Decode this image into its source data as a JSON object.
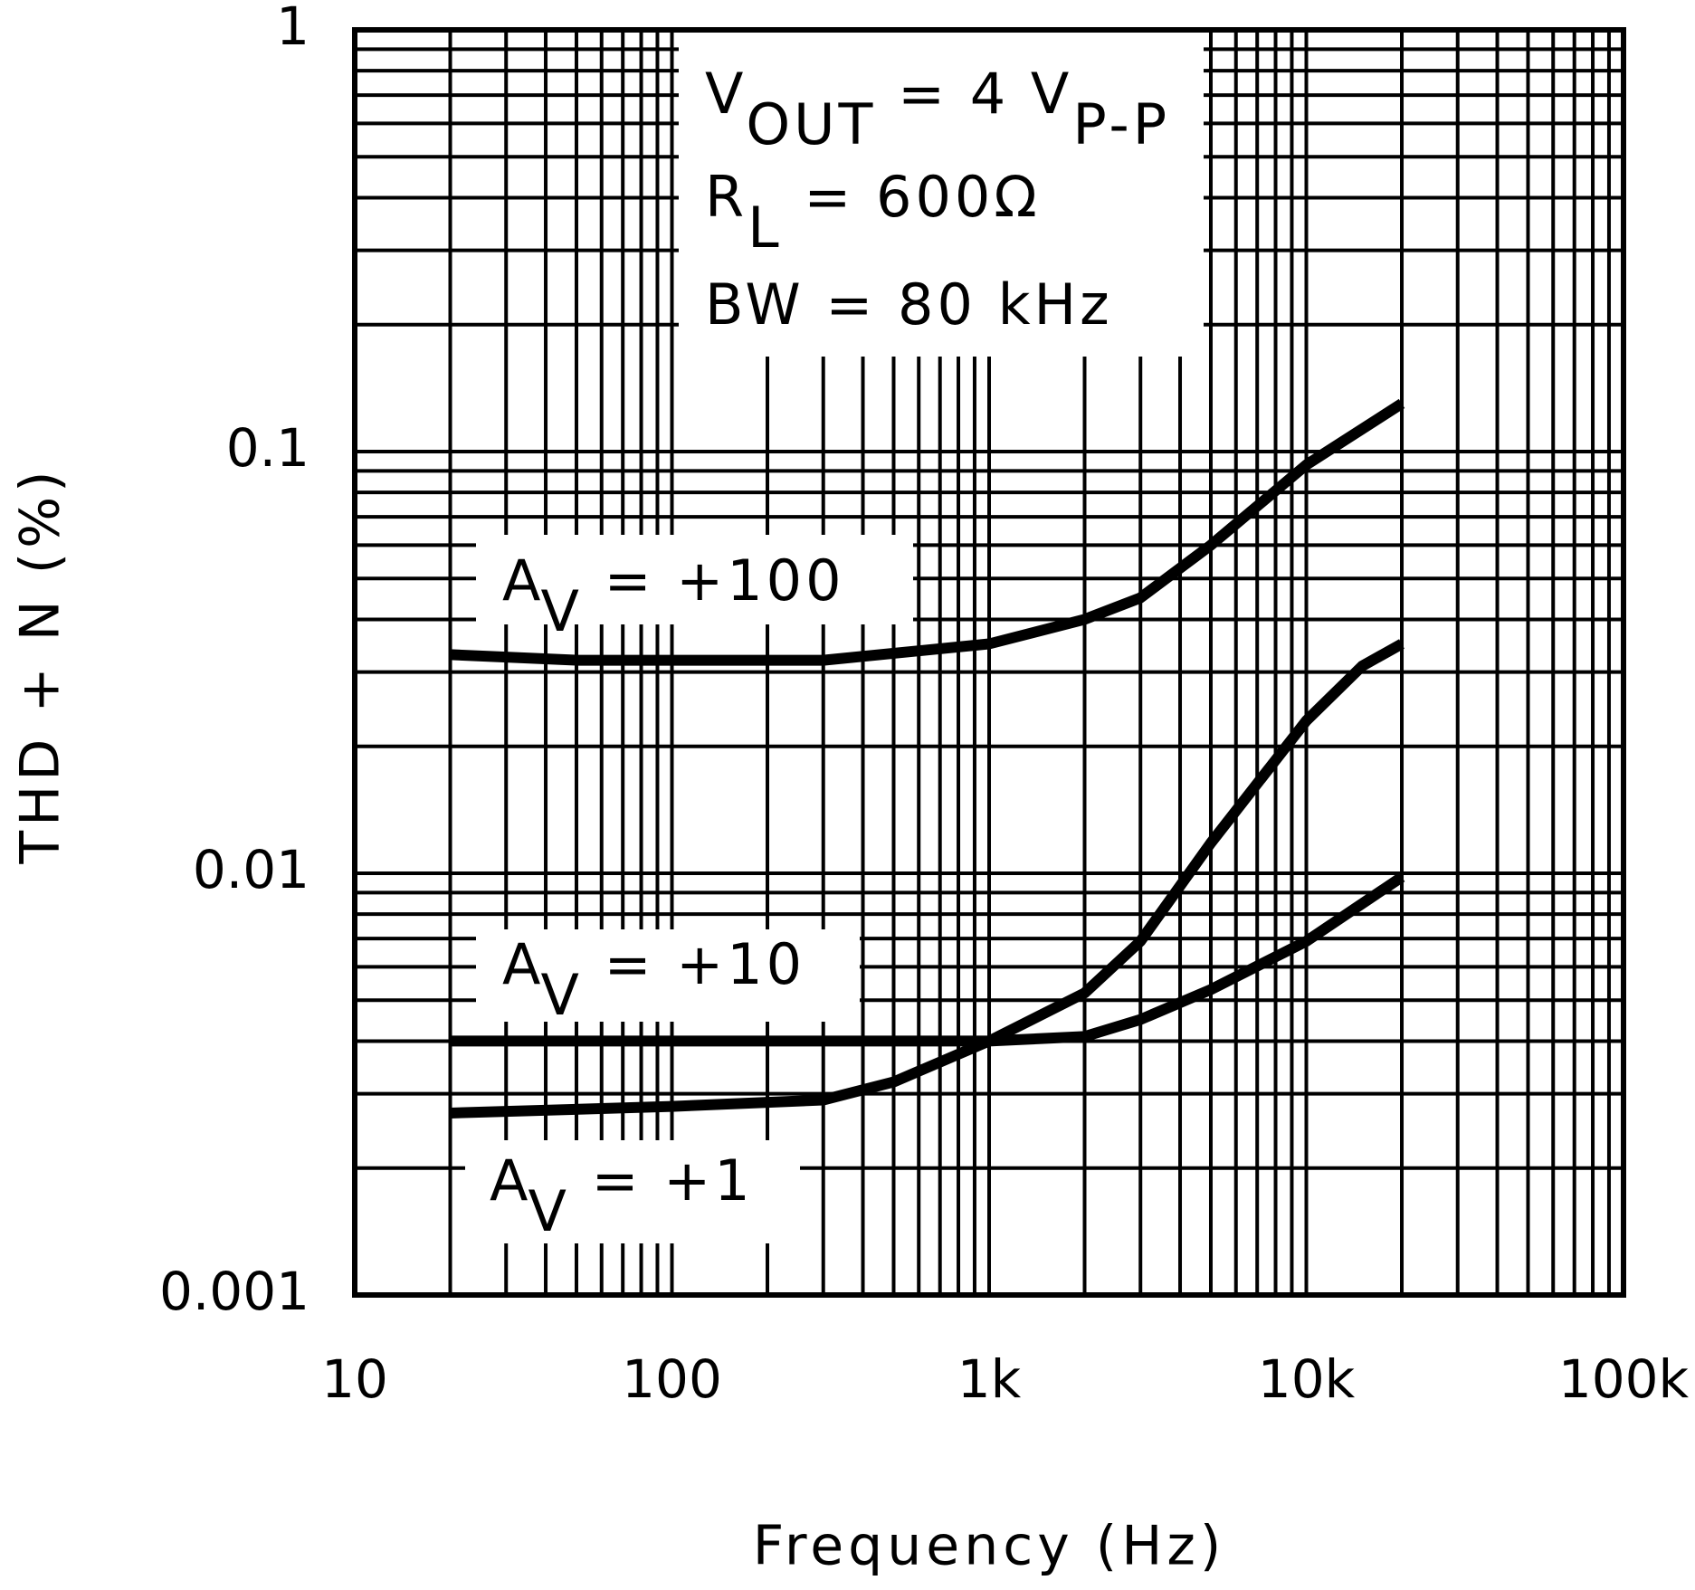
{
  "chart_data": {
    "type": "line",
    "x_label": "Frequency (Hz)",
    "y_label": "THD + N (%)",
    "x_log": true,
    "y_log": true,
    "grid": true,
    "xlim": [
      10,
      100000
    ],
    "ylim": [
      0.001,
      1
    ],
    "xticks": [
      10,
      100,
      {
        "value": 1000,
        "label": "1k"
      },
      {
        "value": 10000,
        "label": "10k"
      },
      {
        "value": 100000,
        "label": "100k"
      }
    ],
    "yticks": [
      0.001,
      0.01,
      0.1,
      1
    ],
    "annotations": [
      [
        {
          "text": "V"
        },
        {
          "text": "OUT",
          "sub": true
        },
        {
          "text": " = 4 V"
        },
        {
          "text": "P-P",
          "sub": true
        }
      ],
      [
        {
          "text": "R"
        },
        {
          "text": "L",
          "sub": true
        },
        {
          "text": " = 600Ω"
        }
      ],
      [
        {
          "text": "BW = 80 kHz"
        }
      ]
    ],
    "series": [
      {
        "label": [
          {
            "text": "A"
          },
          {
            "text": "V",
            "sub": true
          },
          {
            "text": " = +100"
          }
        ],
        "color": "#000000",
        "x": [
          20,
          50,
          100,
          300,
          1000,
          2000,
          3000,
          5000,
          10000,
          20000
        ],
        "values": [
          0.033,
          0.032,
          0.032,
          0.032,
          0.035,
          0.04,
          0.045,
          0.06,
          0.093,
          0.13
        ]
      },
      {
        "label": [
          {
            "text": "A"
          },
          {
            "text": "V",
            "sub": true
          },
          {
            "text": " = +10"
          }
        ],
        "color": "#000000",
        "x": [
          20,
          100,
          300,
          1000,
          2000,
          3000,
          5000,
          10000,
          15000,
          20000
        ],
        "values": [
          0.004,
          0.004,
          0.004,
          0.004,
          0.0052,
          0.0069,
          0.0118,
          0.023,
          0.031,
          0.035
        ]
      },
      {
        "label": [
          {
            "text": "A"
          },
          {
            "text": "V",
            "sub": true
          },
          {
            "text": " = +1"
          }
        ],
        "color": "#000000",
        "x": [
          20,
          100,
          300,
          500,
          1000,
          2000,
          3000,
          5000,
          10000,
          20000
        ],
        "values": [
          0.0027,
          0.0028,
          0.0029,
          0.0032,
          0.004,
          0.0041,
          0.0045,
          0.0053,
          0.0069,
          0.0098
        ]
      }
    ]
  }
}
